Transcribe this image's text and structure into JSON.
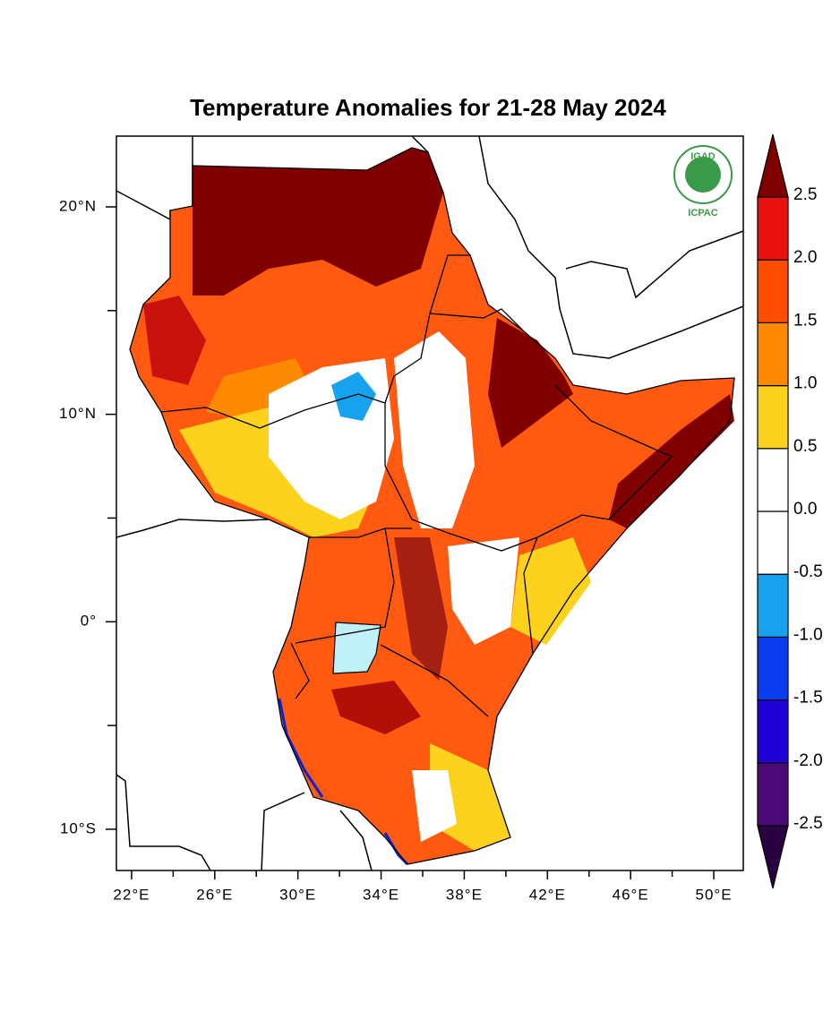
{
  "chart_data": {
    "type": "map",
    "title": "Temperature Anomalies for 21-28 May 2024",
    "xlim": [
      21.27,
      51.42
    ],
    "ylim": [
      -11.99,
      23.41
    ],
    "xticks": [
      {
        "value": 22,
        "label": "22°E"
      },
      {
        "value": 26,
        "label": "26°E"
      },
      {
        "value": 30,
        "label": "30°E"
      },
      {
        "value": 34,
        "label": "34°E"
      },
      {
        "value": 38,
        "label": "38°E"
      },
      {
        "value": 42,
        "label": "42°E"
      },
      {
        "value": 46,
        "label": "46°E"
      },
      {
        "value": 50,
        "label": "50°E"
      }
    ],
    "xminorticks": [
      24,
      28,
      32,
      36,
      40,
      44,
      48
    ],
    "yticks": [
      {
        "value": 20,
        "label": "20°N"
      },
      {
        "value": 10,
        "label": "10°N"
      },
      {
        "value": 0,
        "label": "0°"
      },
      {
        "value": -10,
        "label": "10°S"
      }
    ],
    "yminorticks": [
      15,
      5,
      -5
    ],
    "levels": [
      {
        "value": -2.5,
        "label": "-2.5"
      },
      {
        "value": -2,
        "label": "-2.0"
      },
      {
        "value": -1.5,
        "label": "-1.5"
      },
      {
        "value": -1,
        "label": "-1.0"
      },
      {
        "value": -0.5,
        "label": "-0.5"
      },
      {
        "value": 0,
        "label": "0.0"
      },
      {
        "value": 0.5,
        "label": "0.5"
      },
      {
        "value": 1,
        "label": "1.0"
      },
      {
        "value": 1.5,
        "label": "1.5"
      },
      {
        "value": 2,
        "label": "2.0"
      },
      {
        "value": 2.5,
        "label": "2.5"
      }
    ],
    "colors": [
      "#2a0040",
      "#4b0a78",
      "#2200d8",
      "#0a3cf0",
      "#16a2ef",
      "#ffffff",
      "#ffffff",
      "#fcd21c",
      "#ff8a00",
      "#ff4d00",
      "#e8120e",
      "#800000"
    ],
    "logo": {
      "top": "IGAD",
      "bottom": "ICPAC"
    }
  }
}
